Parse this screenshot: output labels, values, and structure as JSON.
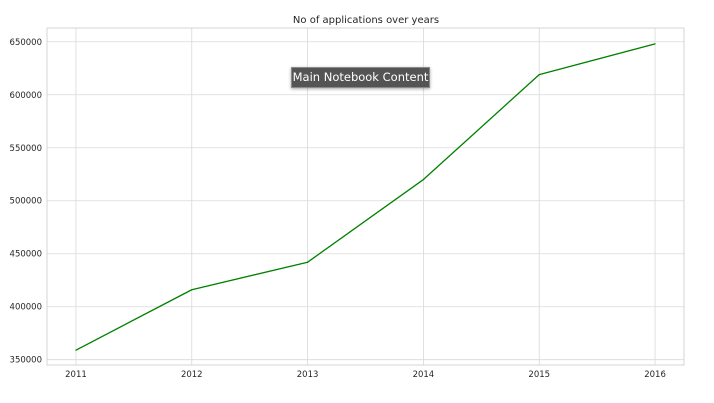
{
  "tooltip": {
    "label": "Main Notebook Content"
  },
  "chart_data": {
    "type": "line",
    "title": "No of applications over years",
    "xlabel": "",
    "ylabel": "",
    "x": [
      2011,
      2012,
      2013,
      2014,
      2015,
      2016
    ],
    "x_tick_labels": [
      "2011",
      "2012",
      "2013",
      "2014",
      "2015",
      "2016"
    ],
    "series": [
      {
        "values": [
          359000,
          416000,
          442000,
          520000,
          619000,
          648000
        ],
        "color": "#008000"
      }
    ],
    "y_ticks": [
      350000,
      400000,
      450000,
      500000,
      550000,
      600000,
      650000
    ],
    "y_tick_labels": [
      "350000",
      "400000",
      "450000",
      "500000",
      "550000",
      "600000",
      "650000"
    ],
    "xlim": [
      2010.75,
      2016.25
    ],
    "ylim": [
      345000,
      663000
    ],
    "grid": true,
    "legend": "none"
  }
}
